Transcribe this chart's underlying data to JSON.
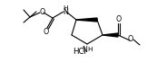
{
  "bg_color": "#ffffff",
  "line_color": "#000000",
  "line_width": 0.8,
  "font_size": 5.2,
  "figsize": [
    1.62,
    0.69
  ],
  "dpi": 100,
  "xlim": [
    0,
    162
  ],
  "ylim": [
    0,
    69
  ]
}
